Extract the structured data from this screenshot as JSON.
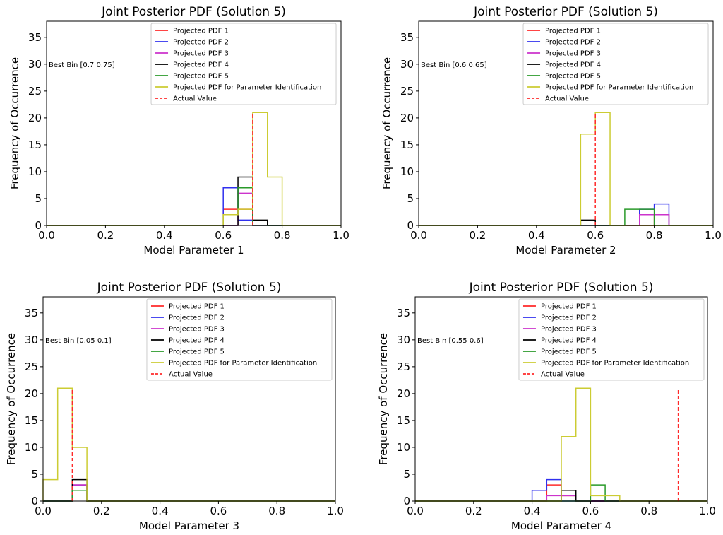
{
  "figure": {
    "legend_labels": [
      "Projected PDF 1",
      "Projected PDF 2",
      "Projected PDF 3",
      "Projected PDF 4",
      "Projected PDF 5",
      "Projected PDF for Parameter Identification",
      "Actual Value"
    ],
    "colors": {
      "pdf1": "#ff2a2a",
      "pdf2": "#3030ee",
      "pdf3": "#cc33cc",
      "pdf4": "#000000",
      "pdf5": "#2a9a2a",
      "identification": "#cccc33",
      "actual": "#ff2a2a"
    }
  },
  "chart_data": [
    {
      "type": "histogram",
      "title": "Joint Posterior PDF (Solution 5)",
      "xlabel": "Model Parameter 1",
      "ylabel": "Frequency of Occurrence",
      "xlim": [
        0.0,
        1.0
      ],
      "ylim": [
        0,
        38
      ],
      "xticks": [
        "0.0",
        "0.2",
        "0.4",
        "0.6",
        "0.8",
        "1.0"
      ],
      "yticks": [
        "0",
        "5",
        "10",
        "15",
        "20",
        "25",
        "30",
        "35"
      ],
      "annotation": "Best Bin [0.7 0.75]",
      "bin_width": 0.05,
      "series": [
        {
          "name": "Projected PDF 1",
          "color": "pdf1",
          "bins": [
            [
              0.6,
              3
            ],
            [
              0.65,
              3
            ]
          ]
        },
        {
          "name": "Projected PDF 2",
          "color": "pdf2",
          "bins": [
            [
              0.6,
              7
            ],
            [
              0.65,
              1
            ]
          ]
        },
        {
          "name": "Projected PDF 3",
          "color": "pdf3",
          "bins": [
            [
              0.6,
              0
            ],
            [
              0.65,
              6
            ]
          ]
        },
        {
          "name": "Projected PDF 4",
          "color": "pdf4",
          "bins": [
            [
              0.65,
              9
            ],
            [
              0.7,
              1
            ]
          ]
        },
        {
          "name": "Projected PDF 5",
          "color": "pdf5",
          "bins": [
            [
              0.6,
              2
            ],
            [
              0.65,
              7
            ]
          ]
        },
        {
          "name": "Projected PDF for Parameter Identification",
          "color": "identification",
          "bins": [
            [
              0.6,
              2
            ],
            [
              0.65,
              3
            ],
            [
              0.7,
              21
            ],
            [
              0.75,
              9
            ]
          ]
        }
      ],
      "actual_value": {
        "x": 0.7,
        "height": 21
      }
    },
    {
      "type": "histogram",
      "title": "Joint Posterior PDF (Solution 5)",
      "xlabel": "Model Parameter 2",
      "ylabel": "Frequency of Occurrence",
      "xlim": [
        0.0,
        1.0
      ],
      "ylim": [
        0,
        38
      ],
      "xticks": [
        "0.0",
        "0.2",
        "0.4",
        "0.6",
        "0.8",
        "1.0"
      ],
      "yticks": [
        "0",
        "5",
        "10",
        "15",
        "20",
        "25",
        "30",
        "35"
      ],
      "annotation": "Best Bin [0.6 0.65]",
      "bin_width": 0.05,
      "series": [
        {
          "name": "Projected PDF 1",
          "color": "pdf1",
          "bins": [
            [
              0.8,
              2
            ]
          ]
        },
        {
          "name": "Projected PDF 2",
          "color": "pdf2",
          "bins": [
            [
              0.75,
              3
            ],
            [
              0.8,
              4
            ]
          ]
        },
        {
          "name": "Projected PDF 3",
          "color": "pdf3",
          "bins": [
            [
              0.75,
              2
            ],
            [
              0.8,
              2
            ]
          ]
        },
        {
          "name": "Projected PDF 4",
          "color": "pdf4",
          "bins": [
            [
              0.55,
              1
            ]
          ]
        },
        {
          "name": "Projected PDF 5",
          "color": "pdf5",
          "bins": [
            [
              0.7,
              3
            ],
            [
              0.75,
              3
            ]
          ]
        },
        {
          "name": "Projected PDF for Parameter Identification",
          "color": "identification",
          "bins": [
            [
              0.55,
              17
            ],
            [
              0.6,
              21
            ]
          ]
        }
      ],
      "actual_value": {
        "x": 0.6,
        "height": 21
      }
    },
    {
      "type": "histogram",
      "title": "Joint Posterior PDF (Solution 5)",
      "xlabel": "Model Parameter 3",
      "ylabel": "Frequency of Occurrence",
      "xlim": [
        0.0,
        1.0
      ],
      "ylim": [
        0,
        38
      ],
      "xticks": [
        "0.0",
        "0.2",
        "0.4",
        "0.6",
        "0.8",
        "1.0"
      ],
      "yticks": [
        "0",
        "5",
        "10",
        "15",
        "20",
        "25",
        "30",
        "35"
      ],
      "annotation": "Best Bin [0.05 0.1]",
      "bin_width": 0.05,
      "series": [
        {
          "name": "Projected PDF 1",
          "color": "pdf1",
          "bins": [
            [
              0.1,
              3
            ]
          ]
        },
        {
          "name": "Projected PDF 2",
          "color": "pdf2",
          "bins": [
            [
              0.1,
              3
            ]
          ]
        },
        {
          "name": "Projected PDF 3",
          "color": "pdf3",
          "bins": [
            [
              0.1,
              3
            ]
          ]
        },
        {
          "name": "Projected PDF 4",
          "color": "pdf4",
          "bins": [
            [
              0.1,
              4
            ]
          ]
        },
        {
          "name": "Projected PDF 5",
          "color": "pdf5",
          "bins": [
            [
              0.1,
              2
            ]
          ]
        },
        {
          "name": "Projected PDF for Parameter Identification",
          "color": "identification",
          "bins": [
            [
              0.0,
              4
            ],
            [
              0.05,
              21
            ],
            [
              0.1,
              10
            ]
          ]
        }
      ],
      "actual_value": {
        "x": 0.1,
        "height": 21
      }
    },
    {
      "type": "histogram",
      "title": "Joint Posterior PDF (Solution 5)",
      "xlabel": "Model Parameter 4",
      "ylabel": "Frequency of Occurrence",
      "xlim": [
        0.0,
        1.0
      ],
      "ylim": [
        0,
        38
      ],
      "xticks": [
        "0.0",
        "0.2",
        "0.4",
        "0.6",
        "0.8",
        "1.0"
      ],
      "yticks": [
        "0",
        "5",
        "10",
        "15",
        "20",
        "25",
        "30",
        "35"
      ],
      "annotation": "Best Bin [0.55 0.6]",
      "bin_width": 0.05,
      "series": [
        {
          "name": "Projected PDF 1",
          "color": "pdf1",
          "bins": [
            [
              0.45,
              3
            ],
            [
              0.5,
              1
            ]
          ]
        },
        {
          "name": "Projected PDF 2",
          "color": "pdf2",
          "bins": [
            [
              0.4,
              2
            ],
            [
              0.45,
              4
            ]
          ]
        },
        {
          "name": "Projected PDF 3",
          "color": "pdf3",
          "bins": [
            [
              0.45,
              1
            ],
            [
              0.5,
              1
            ]
          ]
        },
        {
          "name": "Projected PDF 4",
          "color": "pdf4",
          "bins": [
            [
              0.5,
              2
            ]
          ]
        },
        {
          "name": "Projected PDF 5",
          "color": "pdf5",
          "bins": [
            [
              0.6,
              3
            ]
          ]
        },
        {
          "name": "Projected PDF for Parameter Identification",
          "color": "identification",
          "bins": [
            [
              0.5,
              12
            ],
            [
              0.55,
              21
            ],
            [
              0.6,
              1
            ],
            [
              0.65,
              1
            ]
          ]
        }
      ],
      "actual_value": {
        "x": 0.9,
        "height": 21
      }
    }
  ]
}
